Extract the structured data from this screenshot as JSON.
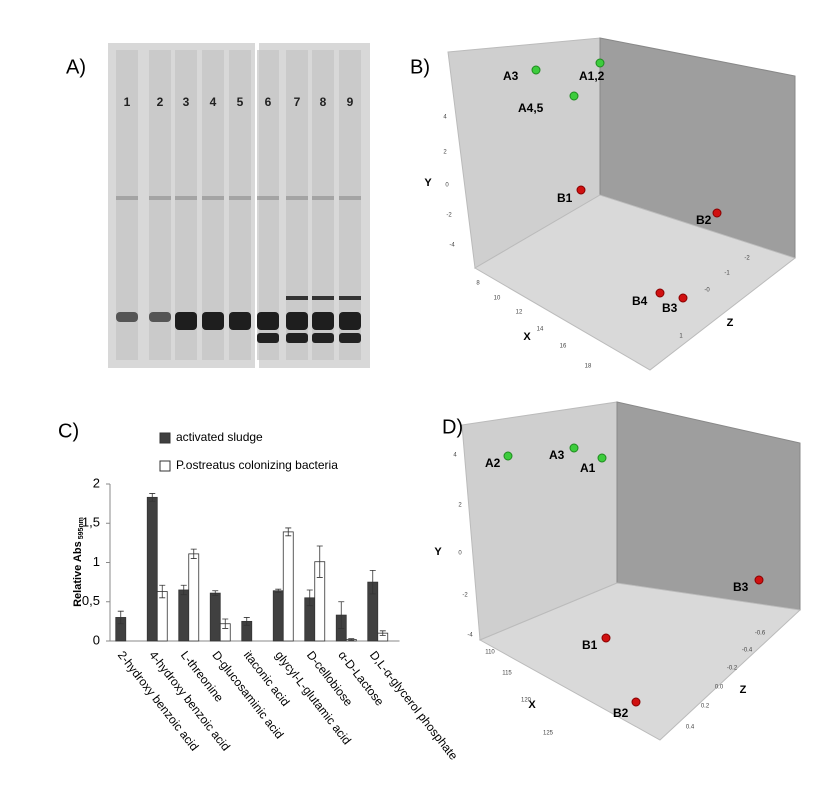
{
  "panels": {
    "A": {
      "label": "A)",
      "lanes": [
        "1",
        "2",
        "3",
        "4",
        "5",
        "6",
        "7",
        "8",
        "9"
      ]
    },
    "B": {
      "label": "B)",
      "x_label": "X",
      "y_label": "Y",
      "z_label": "Z",
      "xticks": [
        "8",
        "10",
        "12",
        "14",
        "16",
        "18"
      ],
      "yticks": [
        "4",
        "2",
        "0",
        "-2",
        "-4"
      ],
      "zticks": [
        "-2",
        "-1",
        "-0",
        "1"
      ],
      "points": [
        "A3",
        "A1,2",
        "A4,5",
        "B1",
        "B2",
        "B4",
        "B3"
      ]
    },
    "C": {
      "label": "C)"
    },
    "D": {
      "label": "D)",
      "x_label": "X",
      "y_label": "Y",
      "z_label": "Z",
      "xticks": [
        "110",
        "115",
        "120",
        "125"
      ],
      "yticks": [
        "4",
        "2",
        "0",
        "-2",
        "-4"
      ],
      "zticks": [
        "-0.6",
        "-0.4",
        "-0.2",
        "0.0",
        "0.2",
        "0.4"
      ],
      "points": [
        "A2",
        "A3",
        "A1",
        "B3",
        "B1",
        "B2"
      ]
    }
  },
  "chart_data": {
    "type": "bar",
    "y_label": "Relative Abs",
    "y_label_sub": "595nm",
    "categories": [
      "2-hydroxy benzoic acid",
      "4-hydroxy benzoic acid",
      "L-threonine",
      "D-glucosaminic acid",
      "itaconic acid",
      "glycyl-L-glutamic acid",
      "D-cellobiose",
      "α-D-Lactose",
      "D,L-α-glycerol phosphate"
    ],
    "series": [
      {
        "name": "activated sludge",
        "color": "#404040",
        "values": [
          0.3,
          1.83,
          0.65,
          0.61,
          0.25,
          0.64,
          0.55,
          0.33,
          0.75
        ],
        "errors": [
          0.08,
          0.05,
          0.06,
          0.03,
          0.05,
          0.02,
          0.1,
          0.17,
          0.15
        ]
      },
      {
        "name": "P.ostreatus colonizing bacteria",
        "color": "#ffffff",
        "values": [
          null,
          0.63,
          1.11,
          0.22,
          null,
          1.39,
          1.01,
          0.02,
          0.1
        ],
        "errors": [
          null,
          0.08,
          0.06,
          0.06,
          null,
          0.05,
          0.2,
          0.01,
          0.03
        ]
      }
    ],
    "ylim": [
      0,
      2
    ],
    "yticks": [
      0,
      {
        "value": 0.5,
        "label": "0,5"
      },
      1,
      {
        "value": 1.5,
        "label": "1,5"
      },
      2
    ]
  }
}
